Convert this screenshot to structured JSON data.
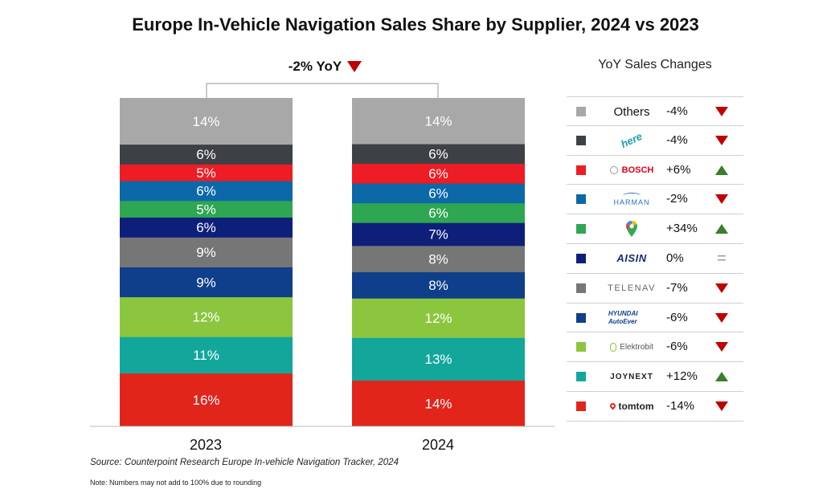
{
  "chart_data": {
    "type": "bar",
    "stacked": true,
    "title": "Europe In-Vehicle Navigation Sales Share by Supplier, 2024 vs 2023",
    "categories": [
      "2023",
      "2024"
    ],
    "annotation": {
      "text": "-2% YoY",
      "direction": "down"
    },
    "ylim": [
      0,
      100
    ],
    "series": [
      {
        "name": "tomtom",
        "color": "#e1251b",
        "values": [
          16,
          14
        ],
        "labels": [
          "16%",
          "14%"
        ]
      },
      {
        "name": "JOYNEXT",
        "color": "#13a79c",
        "values": [
          11,
          13
        ],
        "labels": [
          "11%",
          "13%"
        ]
      },
      {
        "name": "Elektrobit",
        "color": "#8cc63f",
        "values": [
          12,
          12
        ],
        "labels": [
          "12%",
          "12%"
        ]
      },
      {
        "name": "HYUNDAI AutoEver",
        "color": "#0f3f8a",
        "values": [
          9,
          8
        ],
        "labels": [
          "9%",
          "8%"
        ]
      },
      {
        "name": "TELENAV",
        "color": "#767676",
        "values": [
          9,
          8
        ],
        "labels": [
          "9%",
          "8%"
        ]
      },
      {
        "name": "AISIN",
        "color": "#0e1f7a",
        "values": [
          6,
          7
        ],
        "labels": [
          "6%",
          "7%"
        ]
      },
      {
        "name": "",
        "color": "#2ea652",
        "values": [
          5,
          6
        ],
        "labels": [
          "5%",
          "6%"
        ]
      },
      {
        "name": "HARMAN",
        "color": "#0d68a8",
        "values": [
          6,
          6
        ],
        "labels": [
          "6%",
          "6%"
        ]
      },
      {
        "name": "BOSCH",
        "color": "#ee1c25",
        "values": [
          5,
          6
        ],
        "labels": [
          "5%",
          "6%"
        ]
      },
      {
        "name": "here",
        "color": "#3d4146",
        "values": [
          6,
          6
        ],
        "labels": [
          "6%",
          "6%"
        ]
      },
      {
        "name": "Others",
        "color": "#a8a8a8",
        "values": [
          14,
          14
        ],
        "labels": [
          "14%",
          "14%"
        ]
      }
    ]
  },
  "panel": {
    "header": "YoY Sales Changes",
    "rows": [
      {
        "name": "Others",
        "logo_text": "Others",
        "color": "#a8a8a8",
        "change": "-4%",
        "direction": "down"
      },
      {
        "name": "here",
        "logo_text": "here",
        "color": "#3d4146",
        "change": "-4%",
        "direction": "down"
      },
      {
        "name": "BOSCH",
        "logo_text": "BOSCH",
        "color": "#ee1c25",
        "change": "+6%",
        "direction": "up"
      },
      {
        "name": "HARMAN",
        "logo_text": "HARMAN",
        "color": "#0d68a8",
        "change": "-2%",
        "direction": "down"
      },
      {
        "name": "google-maps",
        "logo_text": "",
        "color": "#2ea652",
        "change": "+34%",
        "direction": "up"
      },
      {
        "name": "AISIN",
        "logo_text": "AISIN",
        "color": "#0e1f7a",
        "change": "0%",
        "direction": "flat"
      },
      {
        "name": "TELENAV",
        "logo_text": "TELENAV",
        "color": "#767676",
        "change": "-7%",
        "direction": "down"
      },
      {
        "name": "HYUNDAI AutoEver",
        "logo_text": "HYUNDAI AutoEver",
        "color": "#0f3f8a",
        "change": "-6%",
        "direction": "down"
      },
      {
        "name": "Elektrobit",
        "logo_text": "Elektrobit",
        "color": "#8cc63f",
        "change": "-6%",
        "direction": "down"
      },
      {
        "name": "JOYNEXT",
        "logo_text": "JOYNEXT",
        "color": "#13a79c",
        "change": "+12%",
        "direction": "up"
      },
      {
        "name": "tomtom",
        "logo_text": "tomtom",
        "color": "#e1251b",
        "change": "-14%",
        "direction": "down"
      }
    ]
  },
  "footer": {
    "source": "Source: Counterpoint Research Europe In-vehicle Navigation Tracker, 2024",
    "note": "Note: Numbers may not add to 100% due to rounding"
  },
  "colors": {
    "down": "#c00000",
    "up": "#3a7d2a",
    "flat": "#999999"
  }
}
